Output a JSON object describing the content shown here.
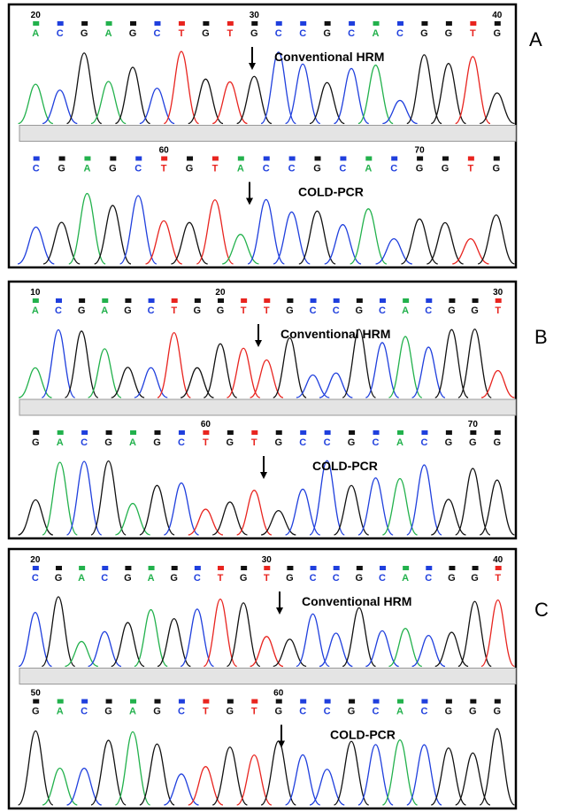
{
  "panels": [
    {
      "label": "A",
      "tracks": [
        {
          "title": "Conventional HRM",
          "numbers": [
            "20",
            "30",
            "40"
          ],
          "bases": [
            "A",
            "C",
            "G",
            "A",
            "G",
            "C",
            "T",
            "G",
            "T",
            "G",
            "C",
            "C",
            "G",
            "C",
            "A",
            "C",
            "G",
            "G",
            "T",
            "G"
          ]
        },
        {
          "title": "COLD-PCR",
          "numbers": [
            "60",
            "70"
          ],
          "bases": [
            "C",
            "G",
            "A",
            "G",
            "C",
            "T",
            "G",
            "T",
            "A",
            "C",
            "C",
            "G",
            "C",
            "A",
            "C",
            "G",
            "G",
            "T",
            "G"
          ]
        }
      ]
    },
    {
      "label": "B",
      "tracks": [
        {
          "title": "Conventional HRM",
          "numbers": [
            "10",
            "20",
            "30"
          ],
          "bases": [
            "A",
            "C",
            "G",
            "A",
            "G",
            "C",
            "T",
            "G",
            "G",
            "T",
            "T",
            "G",
            "C",
            "C",
            "G",
            "C",
            "A",
            "C",
            "G",
            "G",
            "T"
          ]
        },
        {
          "title": "COLD-PCR",
          "numbers": [
            "60",
            "70"
          ],
          "bases": [
            "G",
            "A",
            "C",
            "G",
            "A",
            "G",
            "C",
            "T",
            "G",
            "T",
            "G",
            "C",
            "C",
            "G",
            "C",
            "A",
            "C",
            "G",
            "G",
            "G"
          ]
        }
      ]
    },
    {
      "label": "C",
      "tracks": [
        {
          "title": "Conventional HRM",
          "numbers": [
            "20",
            "30",
            "40"
          ],
          "bases": [
            "C",
            "G",
            "A",
            "C",
            "G",
            "A",
            "G",
            "C",
            "T",
            "G",
            "T",
            "G",
            "C",
            "C",
            "G",
            "C",
            "A",
            "C",
            "G",
            "G",
            "T"
          ]
        },
        {
          "title": "COLD-PCR",
          "numbers": [
            "50",
            "60"
          ],
          "bases": [
            "G",
            "A",
            "C",
            "G",
            "A",
            "G",
            "C",
            "T",
            "G",
            "T",
            "G",
            "C",
            "C",
            "G",
            "C",
            "A",
            "C",
            "G",
            "G",
            "G"
          ]
        }
      ]
    }
  ]
}
